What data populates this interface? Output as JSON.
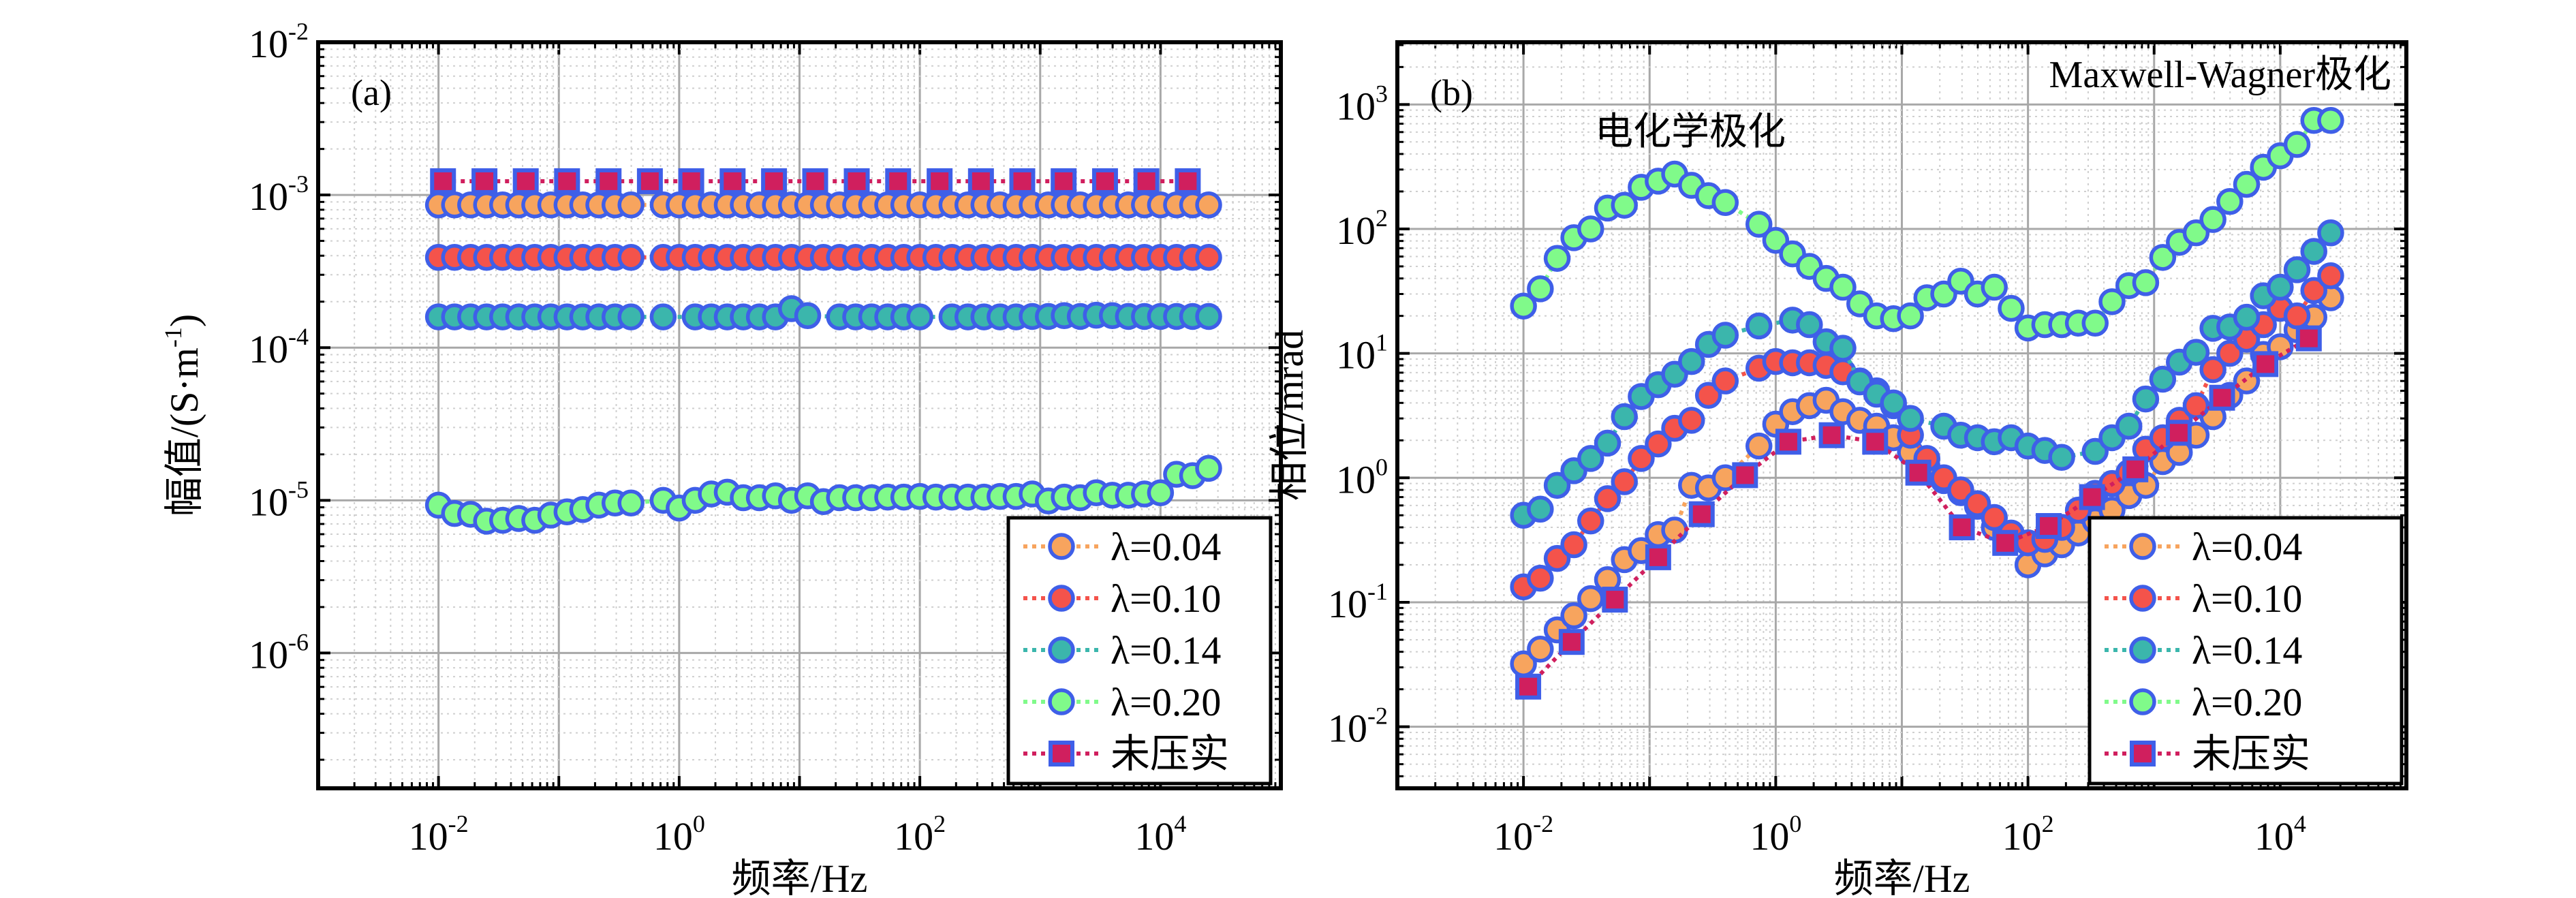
{
  "colors": {
    "marker_edge": "#3F5FE8",
    "lambda_0.04": "#F7A45E",
    "lambda_0.10": "#F4534B",
    "lambda_0.14": "#3BB6AC",
    "lambda_0.20": "#80FA8A",
    "uncompacted_fill": "#D01F5E",
    "uncompacted_line": "#D01F5E"
  },
  "chart_data": [
    {
      "type": "scatter",
      "panel_label": "(a)",
      "xlabel": "频率/Hz",
      "ylabel": "幅值/(S·m",
      "ylabel_sup": "-1",
      "ylabel_end": ")",
      "xscale": "log",
      "yscale": "log",
      "xlim": [
        0.001,
        100000
      ],
      "ylim": [
        1.3e-07,
        0.01
      ],
      "grid": true,
      "legend_position": "bottom-right",
      "x_ticks": [
        {
          "value": 0.01,
          "base": "10",
          "exp": "-2"
        },
        {
          "value": 1,
          "base": "10",
          "exp": "0"
        },
        {
          "value": 100,
          "base": "10",
          "exp": "2"
        },
        {
          "value": 10000,
          "base": "10",
          "exp": "4"
        }
      ],
      "y_ticks": [
        {
          "value": 1e-06,
          "base": "10",
          "exp": "-6"
        },
        {
          "value": 1e-05,
          "base": "10",
          "exp": "-5"
        },
        {
          "value": 0.0001,
          "base": "10",
          "exp": "-4"
        },
        {
          "value": 0.001,
          "base": "10",
          "exp": "-3"
        },
        {
          "value": 0.01,
          "base": "10",
          "exp": "-2"
        }
      ],
      "x": [
        0.01,
        0.0136,
        0.0185,
        0.0251,
        0.0341,
        0.0464,
        0.0631,
        0.0858,
        0.117,
        0.158,
        0.215,
        0.293,
        0.398,
        0.541,
        0.736,
        1,
        1.36,
        1.85,
        2.51,
        3.41,
        4.64,
        6.31,
        8.58,
        11.7,
        15.8,
        21.5,
        29.3,
        39.8,
        54.1,
        73.6,
        100,
        136,
        185,
        251,
        341,
        464,
        631,
        858,
        1170,
        1585,
        2154,
        2929,
        3981,
        5412,
        7356,
        10000,
        13594,
        18478,
        25119
      ],
      "x_uncompacted": [
        0.0109,
        0.0241,
        0.0531,
        0.117,
        0.259,
        0.571,
        1.26,
        2.78,
        6.14,
        13.5,
        29.9,
        66,
        146,
        322,
        710,
        1567,
        3459,
        7634,
        16849
      ],
      "series": [
        {
          "name": "λ=0.04",
          "color_key": "lambda_0.04",
          "marker": "circle",
          "values": [
            0.00086,
            0.00086,
            0.00086,
            0.00086,
            0.00086,
            0.00086,
            0.00086,
            0.00086,
            0.00086,
            0.00086,
            0.00086,
            0.00086,
            0.00086,
            null,
            0.00086,
            0.00086,
            0.00086,
            0.00086,
            0.00086,
            0.00086,
            0.00086,
            0.00086,
            0.00086,
            0.00086,
            0.00086,
            0.00086,
            0.00086,
            0.00086,
            0.00086,
            0.00086,
            0.00086,
            0.00086,
            0.00086,
            0.00086,
            0.00086,
            0.00086,
            0.00086,
            0.00086,
            0.00086,
            0.00086,
            0.00086,
            0.00086,
            0.00086,
            0.00086,
            0.00086,
            0.00086,
            0.00086,
            0.00086,
            0.00086
          ]
        },
        {
          "name": "λ=0.10",
          "color_key": "lambda_0.10",
          "marker": "circle",
          "values": [
            0.00039,
            0.00039,
            0.00039,
            0.00039,
            0.00039,
            0.00039,
            0.00039,
            0.00039,
            0.00039,
            0.00039,
            0.00039,
            0.00039,
            0.00039,
            null,
            0.00039,
            0.00039,
            0.00039,
            0.00039,
            0.00039,
            0.00039,
            0.00039,
            0.00039,
            0.00039,
            0.00039,
            0.00039,
            0.00039,
            0.00039,
            0.00039,
            0.00039,
            0.00039,
            0.00039,
            0.00039,
            0.00039,
            0.00039,
            0.00039,
            0.00039,
            0.00039,
            0.00039,
            0.00039,
            0.00039,
            0.00039,
            0.00039,
            0.00039,
            0.00039,
            0.00039,
            0.00039,
            0.00039,
            0.00039,
            0.00039
          ]
        },
        {
          "name": "λ=0.14",
          "color_key": "lambda_0.14",
          "marker": "circle",
          "values": [
            0.000159,
            0.000159,
            0.000159,
            0.000159,
            0.000159,
            0.000159,
            0.000159,
            0.000159,
            0.000159,
            0.000159,
            0.000159,
            0.000159,
            0.000159,
            null,
            0.000159,
            null,
            0.000159,
            0.000159,
            0.000159,
            0.000159,
            0.000159,
            0.000159,
            0.00018,
            0.000162,
            null,
            0.000159,
            0.000159,
            0.000159,
            0.000159,
            0.000159,
            0.000159,
            null,
            0.000159,
            0.000159,
            0.000159,
            0.000159,
            0.000159,
            0.00016,
            0.00016,
            0.000162,
            0.00016,
            0.000163,
            0.000162,
            0.00016,
            0.00016,
            0.00016,
            0.00016,
            0.00016,
            0.00016
          ]
        },
        {
          "name": "λ=0.20",
          "color_key": "lambda_0.20",
          "marker": "circle",
          "values": [
            9.3e-06,
            8.2e-06,
            8.1e-06,
            7.3e-06,
            7.4e-06,
            7.6e-06,
            7.4e-06,
            8e-06,
            8.4e-06,
            8.7e-06,
            9.3e-06,
            9.6e-06,
            9.6e-06,
            null,
            1e-05,
            8.9e-06,
            1e-05,
            1.1e-05,
            1.13e-05,
            1.04e-05,
            1.04e-05,
            1.07e-05,
            1e-05,
            1.07e-05,
            9.8e-06,
            1.04e-05,
            1.04e-05,
            1.04e-05,
            1.05e-05,
            1.05e-05,
            1.06e-05,
            1.05e-05,
            1.05e-05,
            1.05e-05,
            1.05e-05,
            1.06e-05,
            1.06e-05,
            1.1e-05,
            9.9e-06,
            1.05e-05,
            1.04e-05,
            1.12e-05,
            1.08e-05,
            1.08e-05,
            1.1e-05,
            1.12e-05,
            1.48e-05,
            1.45e-05,
            1.62e-05
          ]
        },
        {
          "name": "未压实",
          "color_key": "uncompacted_fill",
          "marker": "square",
          "x_key": "x_uncompacted",
          "values": [
            0.00123,
            0.00123,
            0.00123,
            0.00123,
            0.00123,
            0.00123,
            0.00123,
            0.00123,
            0.00123,
            0.00123,
            0.00123,
            0.00123,
            0.00123,
            0.00123,
            0.00123,
            0.00123,
            0.00123,
            0.00123,
            0.00123
          ]
        }
      ]
    },
    {
      "type": "scatter",
      "panel_label": "(b)",
      "annotations": [
        "Maxwell-Wagner极化",
        "电化学极化"
      ],
      "xlabel": "频率/Hz",
      "ylabel": "相位/mrad",
      "xscale": "log",
      "yscale": "log",
      "xlim": [
        0.001,
        100000
      ],
      "ylim": [
        0.0032,
        3162
      ],
      "grid": true,
      "legend_position": "bottom-right",
      "x_ticks": [
        {
          "value": 0.01,
          "base": "10",
          "exp": "-2"
        },
        {
          "value": 1,
          "base": "10",
          "exp": "0"
        },
        {
          "value": 100,
          "base": "10",
          "exp": "2"
        },
        {
          "value": 10000,
          "base": "10",
          "exp": "4"
        }
      ],
      "y_ticks": [
        {
          "value": 0.01,
          "base": "10",
          "exp": "-2"
        },
        {
          "value": 0.1,
          "base": "10",
          "exp": "-1"
        },
        {
          "value": 1,
          "base": "10",
          "exp": "0"
        },
        {
          "value": 10,
          "base": "10",
          "exp": "1"
        },
        {
          "value": 100,
          "base": "10",
          "exp": "2"
        },
        {
          "value": 1000,
          "base": "10",
          "exp": "3"
        }
      ],
      "x": [
        0.01,
        0.0136,
        0.0185,
        0.0251,
        0.0341,
        0.0464,
        0.0631,
        0.0858,
        0.117,
        0.158,
        0.215,
        0.293,
        0.398,
        0.541,
        0.736,
        1,
        1.36,
        1.85,
        2.51,
        3.41,
        4.64,
        6.31,
        8.58,
        11.7,
        15.8,
        21.5,
        29.3,
        39.8,
        54.1,
        73.6,
        100,
        136,
        185,
        251,
        341,
        464,
        631,
        858,
        1170,
        1585,
        2154,
        2929,
        3981,
        5412,
        7356,
        10000,
        13594,
        18478,
        25119
      ],
      "x_uncompacted": [
        0.0109,
        0.0241,
        0.0531,
        0.117,
        0.259,
        0.571,
        1.26,
        2.78,
        6.14,
        13.5,
        29.9,
        66,
        146,
        322,
        710,
        1567,
        3459,
        7634,
        16849
      ],
      "series": [
        {
          "name": "λ=0.04",
          "color_key": "lambda_0.04",
          "marker": "circle",
          "values": [
            0.032,
            0.042,
            0.06,
            0.078,
            0.107,
            0.152,
            0.22,
            0.26,
            0.35,
            0.38,
            0.87,
            0.83,
            1.0,
            null,
            1.8,
            2.7,
            3.4,
            3.8,
            4.2,
            3.4,
            2.9,
            2.6,
            2.1,
            1.6,
            1.25,
            0.95,
            0.76,
            0.59,
            0.4,
            0.35,
            0.2,
            0.245,
            0.29,
            0.36,
            0.45,
            0.55,
            0.72,
            0.87,
            1.35,
            1.6,
            2.2,
            3.1,
            4.6,
            6.0,
            9.8,
            11.3,
            15.5,
            19.5,
            28
          ]
        },
        {
          "name": "λ=0.10",
          "color_key": "lambda_0.10",
          "marker": "circle",
          "values": [
            0.133,
            0.156,
            0.225,
            0.29,
            0.45,
            0.68,
            0.93,
            1.43,
            1.87,
            2.5,
            2.9,
            4.6,
            6.0,
            null,
            7.6,
            8.6,
            8.4,
            8.4,
            8.0,
            7.1,
            6.0,
            5.0,
            3.8,
            2.2,
            1.43,
            1.0,
            0.8,
            0.62,
            0.48,
            0.36,
            0.3,
            0.32,
            0.4,
            0.55,
            0.75,
            0.9,
            1.1,
            1.7,
            2.1,
            2.9,
            3.8,
            7.4,
            10,
            13,
            17,
            23,
            20,
            32,
            42
          ]
        },
        {
          "name": "λ=0.14",
          "color_key": "lambda_0.14",
          "marker": "circle",
          "values": [
            0.5,
            0.56,
            0.87,
            1.14,
            1.43,
            1.9,
            3.1,
            4.5,
            5.6,
            6.8,
            8.6,
            11.8,
            14,
            null,
            16.6,
            null,
            18.5,
            17,
            12.4,
            11,
            5.9,
            4.7,
            4.0,
            3.0,
            null,
            2.6,
            2.2,
            2.1,
            1.95,
            2.1,
            1.8,
            1.66,
            1.46,
            null,
            1.63,
            2.1,
            2.6,
            4.3,
            6.2,
            8.5,
            10.2,
            15.9,
            16.3,
            19.5,
            29,
            34,
            47,
            66,
            93
          ]
        },
        {
          "name": "λ=0.20",
          "color_key": "lambda_0.20",
          "marker": "circle",
          "values": [
            24,
            33,
            58,
            85,
            100,
            147,
            155,
            216,
            242,
            276,
            224,
            185,
            163,
            null,
            109,
            81,
            63,
            50,
            40,
            34,
            25,
            20,
            19,
            20,
            28,
            30,
            38,
            30,
            34,
            23,
            16,
            17,
            17,
            17.5,
            17.5,
            26,
            35,
            37,
            59,
            78,
            93,
            119,
            166,
            228,
            313,
            387,
            477,
            744,
            744
          ]
        },
        {
          "name": "未压实",
          "color_key": "uncompacted_fill",
          "marker": "square",
          "x_key": "x_uncompacted",
          "values": [
            0.021,
            0.048,
            0.105,
            0.23,
            0.51,
            1.05,
            1.95,
            2.2,
            1.95,
            1.1,
            0.4,
            0.3,
            0.41,
            0.7,
            1.17,
            2.3,
            4.4,
            8.2,
            13.2
          ]
        }
      ]
    }
  ]
}
